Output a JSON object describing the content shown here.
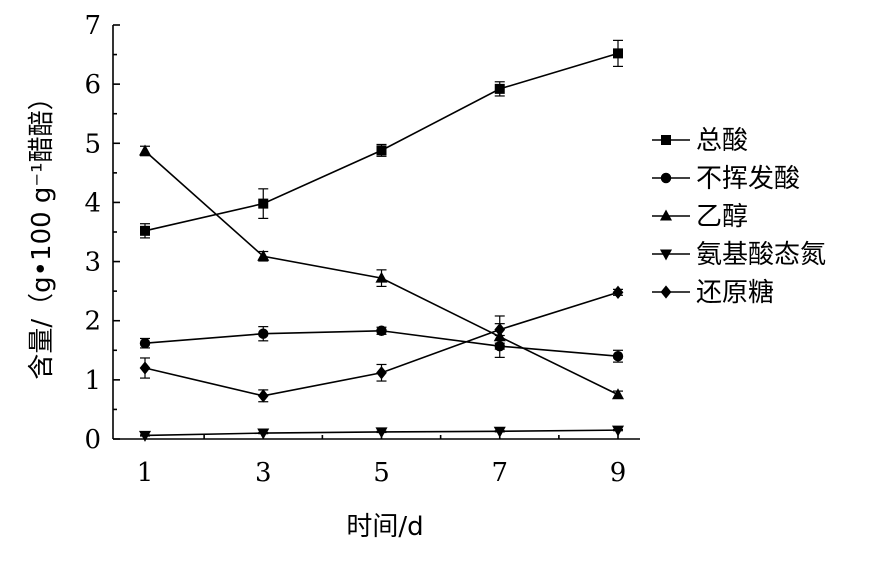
{
  "chart_data": {
    "type": "line",
    "title": "",
    "xlabel": "时间/d",
    "ylabel": "含量/（g•100 g⁻¹醋醅）",
    "x": [
      1,
      3,
      5,
      7,
      9
    ],
    "xticks": [
      "1",
      "3",
      "5",
      "7",
      "9"
    ],
    "ylim": [
      0,
      7
    ],
    "yticks": [
      "0",
      "1",
      "2",
      "3",
      "4",
      "5",
      "6",
      "7"
    ],
    "grid": false,
    "legend_position": "right",
    "series": [
      {
        "name": "总酸",
        "marker": "square",
        "values": [
          3.52,
          3.98,
          4.88,
          5.92,
          6.52
        ],
        "errors": [
          0.12,
          0.25,
          0.1,
          0.12,
          0.22
        ]
      },
      {
        "name": "不挥发酸",
        "marker": "circle",
        "values": [
          1.62,
          1.78,
          1.83,
          1.57,
          1.4
        ],
        "errors": [
          0.08,
          0.12,
          0.06,
          0.05,
          0.1
        ]
      },
      {
        "name": "乙醇",
        "marker": "triangle-up",
        "values": [
          4.87,
          3.09,
          2.72,
          1.73,
          0.75
        ],
        "errors": [
          0.08,
          0.08,
          0.14,
          0.35,
          0.06
        ]
      },
      {
        "name": "氨基酸态氮",
        "marker": "triangle-down",
        "values": [
          0.06,
          0.1,
          0.12,
          0.13,
          0.15
        ],
        "errors": [
          0.01,
          0.01,
          0.01,
          0.01,
          0.01
        ]
      },
      {
        "name": "还原糖",
        "marker": "diamond",
        "values": [
          1.2,
          0.73,
          1.12,
          1.85,
          2.48
        ],
        "errors": [
          0.17,
          0.1,
          0.14,
          0.1,
          0.05
        ]
      }
    ]
  }
}
